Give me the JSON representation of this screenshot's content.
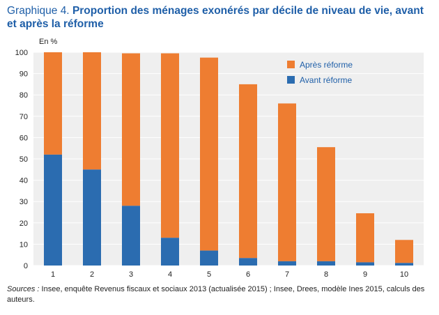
{
  "title": {
    "prefix": "Graphique 4.",
    "main": "Proportion des ménages exonérés par décile de niveau de vie, avant et après la réforme"
  },
  "sources": {
    "label": "Sources :",
    "text": "Insee, enquête Revenus fiscaux et sociaux 2013 (actualisée 2015) ; Insee, Drees, modèle Ines 2015, calculs des auteurs."
  },
  "chart_data": {
    "type": "bar",
    "stacked": true,
    "unit_label": "En %",
    "categories": [
      "1",
      "2",
      "3",
      "4",
      "5",
      "6",
      "7",
      "8",
      "9",
      "10"
    ],
    "series": [
      {
        "name": "Avant réforme",
        "color": "#2b6cb0",
        "values": [
          52,
          45,
          28,
          13,
          7,
          3.5,
          2,
          2,
          1.5,
          1.2
        ]
      },
      {
        "name": "Après réforme",
        "color": "#ee7d31",
        "total_values": [
          100,
          100,
          99.5,
          99.5,
          97.5,
          85,
          76,
          55.5,
          24.5,
          12
        ]
      }
    ],
    "ylim": [
      0,
      100
    ],
    "yticks": [
      "0",
      "10",
      "20",
      "30",
      "40",
      "50",
      "60",
      "70",
      "80",
      "90",
      "100"
    ],
    "grid": true,
    "legend_position": "top-right",
    "background": "#efefef"
  }
}
